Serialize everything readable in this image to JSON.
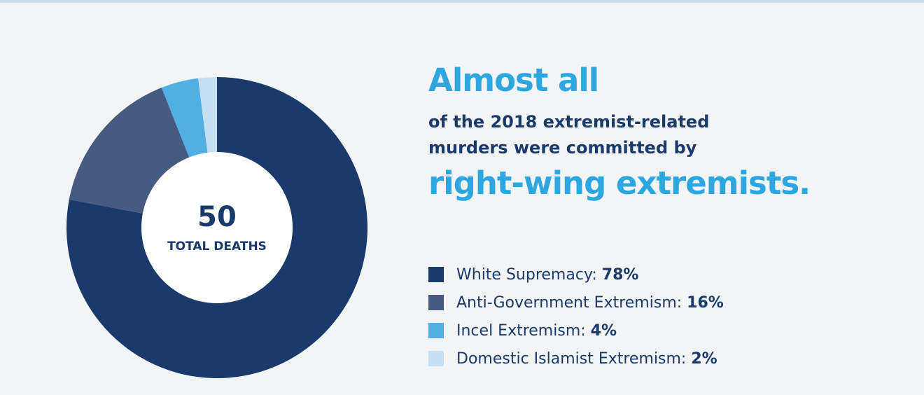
{
  "headline": "Almost all",
  "subline": [
    "of the 2018 extremist-related",
    "murders were committed by"
  ],
  "emphasis": "right-wing extremists.",
  "colors": {
    "white_supremacy": "#1a3a6b",
    "anti_government": "#465a82",
    "incel": "#52afe1",
    "domestic_islamist": "#c6dff3",
    "center": "#ffffff",
    "text_dark": "#1a3a6b",
    "accent": "#2ea6df"
  },
  "chart_data": {
    "type": "pie",
    "donut": true,
    "center_value": "50",
    "center_label": "TOTAL DEATHS",
    "categories": [
      "White Supremacy",
      "Anti-Government Extremism",
      "Incel Extremism",
      "Domestic Islamist Extremism"
    ],
    "values": [
      78,
      16,
      4,
      2
    ],
    "value_labels": [
      "78%",
      "16%",
      "4%",
      "2%"
    ],
    "legend_labels": [
      "White Supremacy:",
      "Anti-Government Extremism:",
      "Incel Extremism:",
      "Domestic Islamist Extremism:"
    ],
    "colors": [
      "#1a3a6b",
      "#465a82",
      "#52afe1",
      "#c6dff3"
    ],
    "legend_position": "right"
  }
}
